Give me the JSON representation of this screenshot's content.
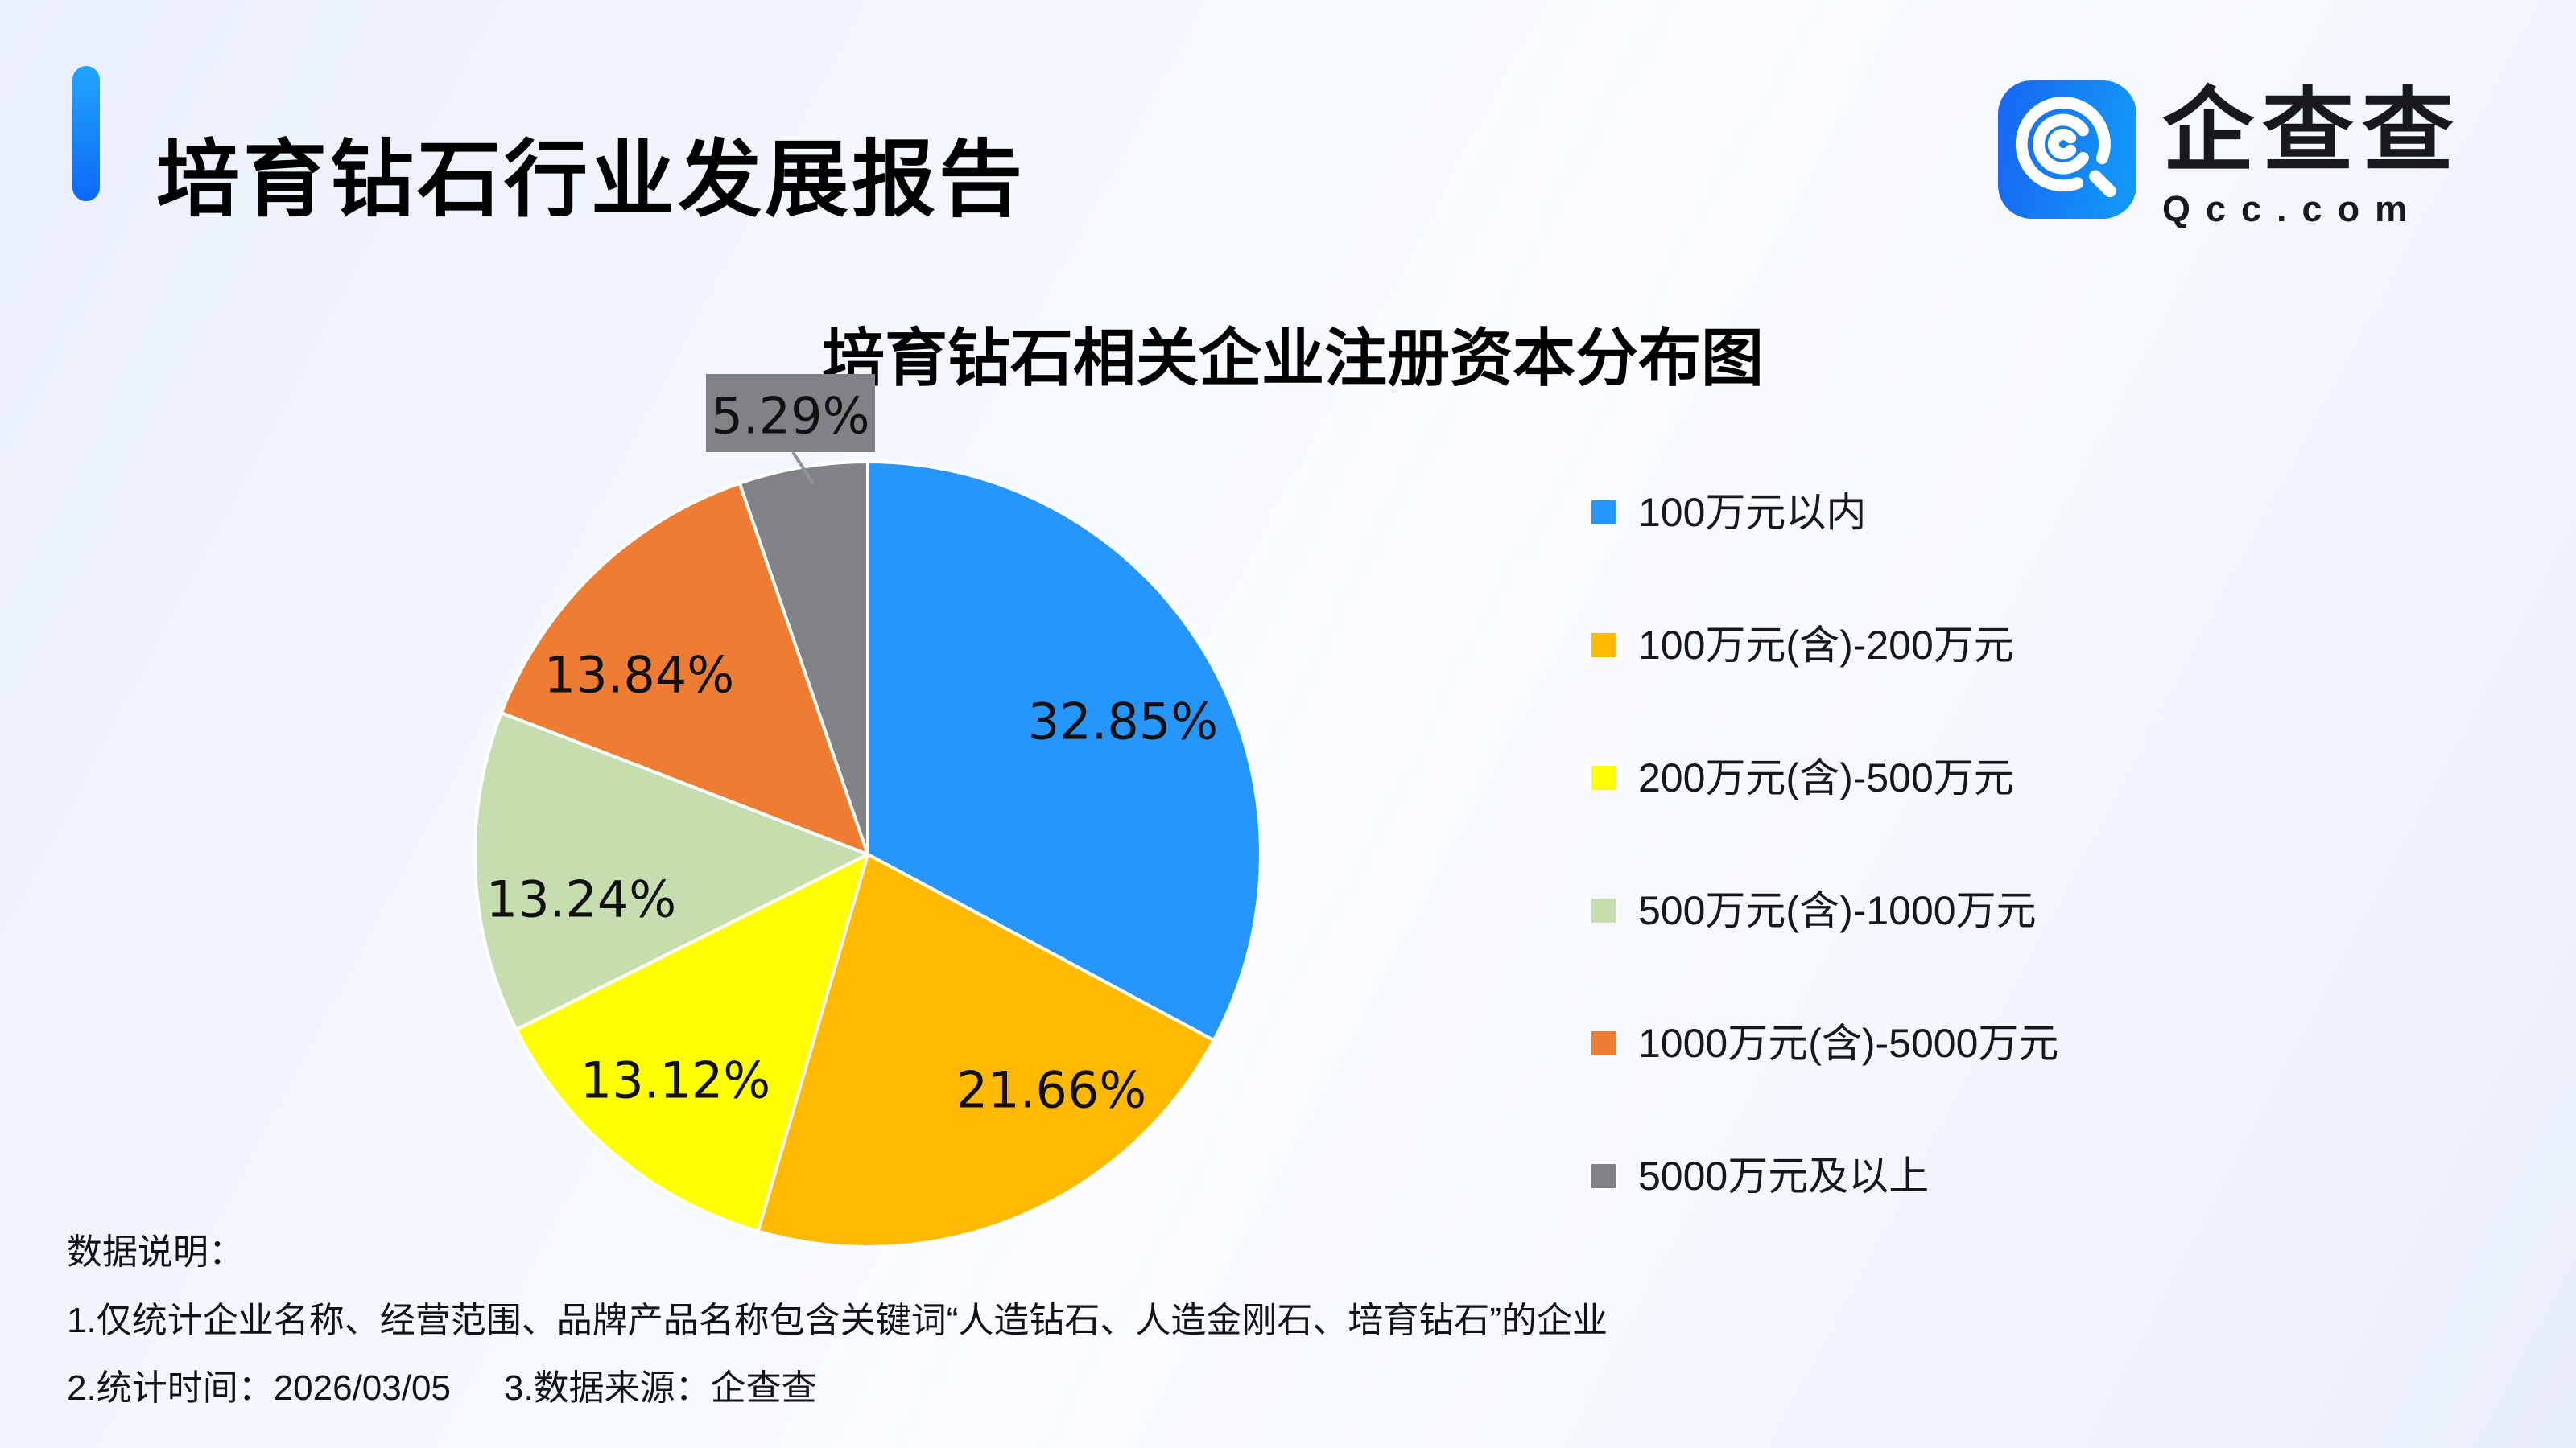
{
  "header": {
    "title": "培育钻石行业发展报告"
  },
  "logo": {
    "brand": "企查查",
    "domain": "Qcc.com"
  },
  "chart_data": {
    "type": "pie",
    "title": "培育钻石相关企业注册资本分布图",
    "legend_position": "right",
    "start_angle_deg": 0,
    "direction": "clockwise",
    "value_suffix": "%",
    "slices": [
      {
        "label": "100万元以内",
        "value": 32.85,
        "color": "#2796FA"
      },
      {
        "label": "100万元(含)-200万元",
        "value": 21.66,
        "color": "#FFB900"
      },
      {
        "label": "200万元(含)-500万元",
        "value": 13.12,
        "color": "#FFFF00"
      },
      {
        "label": "500万元(含)-1000万元",
        "value": 13.24,
        "color": "#C6DDB0"
      },
      {
        "label": "1000万元(含)-5000万元",
        "value": 13.84,
        "color": "#EE7D33"
      },
      {
        "label": "5000万元及以上",
        "value": 5.29,
        "color": "#808285"
      }
    ],
    "callout": {
      "slice_index": 5,
      "box_color": "#808285"
    }
  },
  "footer": {
    "heading": "数据说明：",
    "note1": "1.仅统计企业名称、经营范围、品牌产品名称包含关键词“人造钻石、人造金刚石、培育钻石”的企业",
    "note2_time": "2.统计时间：2026/03/05",
    "note2_source": "3.数据来源：企查查"
  },
  "colors": {
    "accent_bar": "#1080FB",
    "logo_gradient_start": "#1765F1",
    "logo_gradient_end": "#129DF8",
    "background_tint": "#ECF1FB",
    "slice_stroke": "#FFFFFF",
    "label_text": "#111111"
  }
}
